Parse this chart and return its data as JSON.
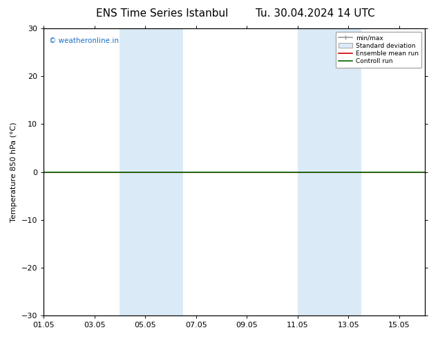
{
  "title_left": "ENS Time Series Istanbul",
  "title_right": "Tu. 30.04.2024 14 UTC",
  "ylabel": "Temperature 850 hPa (°C)",
  "ylim": [
    -30,
    30
  ],
  "yticks": [
    -30,
    -20,
    -10,
    0,
    10,
    20,
    30
  ],
  "xlim": [
    0,
    15
  ],
  "xtick_positions": [
    0,
    2,
    4,
    6,
    8,
    10,
    12,
    14
  ],
  "xtick_labels": [
    "01.05",
    "03.05",
    "05.05",
    "07.05",
    "09.05",
    "11.05",
    "13.05",
    "15.05"
  ],
  "shaded_bands": [
    {
      "x_start": 3.0,
      "x_end": 4.0
    },
    {
      "x_start": 4.0,
      "x_end": 5.5
    },
    {
      "x_start": 10.0,
      "x_end": 11.0
    },
    {
      "x_start": 11.0,
      "x_end": 12.5
    }
  ],
  "control_run_y": 0.0,
  "background_color": "#ffffff",
  "band_color": "#daeaf7",
  "control_run_color": "#006400",
  "ensemble_mean_color": "#cc0000",
  "minmax_color": "#999999",
  "watermark_text": "© weatheronline.in",
  "watermark_color": "#1a6fc4",
  "legend_entries": [
    "min/max",
    "Standard deviation",
    "Ensemble mean run",
    "Controll run"
  ],
  "title_fontsize": 11,
  "axis_fontsize": 8,
  "tick_fontsize": 8
}
